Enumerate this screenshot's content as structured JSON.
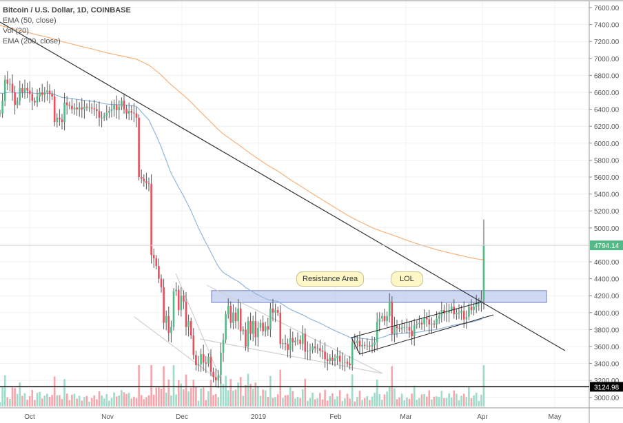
{
  "legend": {
    "title": "Bitcoin / U.S. Dollar, 1D, COINBASE",
    "ema50": "EMA (50, close)",
    "vol": "Vol (20)",
    "ema200": "EMA (200, close)"
  },
  "annotations": {
    "resistance": "Resistance Area",
    "lol": "LOL"
  },
  "colors": {
    "up": "#53b987",
    "down": "#eb4d5c",
    "ema50": "#8fb6dd",
    "ema200": "#f7b27a",
    "resistance_fill": "#b9c7ee",
    "last_price": "#53b987"
  },
  "chart_data": {
    "type": "candlestick",
    "title": "Bitcoin / U.S. Dollar, 1D, COINBASE",
    "start_date": "2018-09-19",
    "ylim": [
      2880,
      7680
    ],
    "yticks": [
      "7600.00",
      "7400.00",
      "7200.00",
      "7000.00",
      "6800.00",
      "6600.00",
      "6400.00",
      "6200.00",
      "6000.00",
      "5800.00",
      "5600.00",
      "5400.00",
      "5200.00",
      "5000.00",
      "4600.00",
      "4400.00",
      "4200.00",
      "4000.00",
      "3800.00",
      "3600.00",
      "3400.00",
      "3200.00",
      "3000.00"
    ],
    "xticks": [
      "Oct",
      "Nov",
      "Dec",
      "2019",
      "Feb",
      "Mar",
      "Apr",
      "May"
    ],
    "last_price": "4794.14",
    "support_level": "3124.98",
    "resistance_area": [
      4120,
      4260
    ],
    "closes": [
      6350,
      6500,
      6750,
      6700,
      6700,
      6600,
      6450,
      6500,
      6650,
      6600,
      6650,
      6620,
      6580,
      6500,
      6480,
      6550,
      6600,
      6570,
      6600,
      6620,
      6580,
      6550,
      6250,
      6300,
      6280,
      6250,
      6480,
      6450,
      6440,
      6400,
      6420,
      6400,
      6420,
      6400,
      6430,
      6420,
      6420,
      6410,
      6400,
      6380,
      6300,
      6300,
      6320,
      6360,
      6380,
      6400,
      6450,
      6390,
      6430,
      6500,
      6400,
      6350,
      6380,
      6360,
      6350,
      6300,
      5600,
      5580,
      5550,
      5530,
      5520,
      4680,
      4640,
      4550,
      4400,
      4300,
      3880,
      3960,
      3760,
      3830,
      4250,
      4270,
      4030,
      4200,
      4130,
      3830,
      3900,
      3730,
      3500,
      3380,
      3390,
      3510,
      3410,
      3400,
      3480,
      3300,
      3240,
      3200,
      3260,
      3530,
      3680,
      3980,
      4080,
      3880,
      4000,
      3900,
      4050,
      3780,
      3800,
      3600,
      3900,
      3750,
      3900,
      3710,
      3820,
      3880,
      3780,
      3840,
      3800,
      4050,
      4000,
      4030,
      4000,
      3630,
      3640,
      3630,
      3560,
      3700,
      3650,
      3670,
      3680,
      3630,
      3750,
      3540,
      3550,
      3560,
      3600,
      3580,
      3580,
      3550,
      3540,
      3450,
      3430,
      3470,
      3430,
      3460,
      3490,
      3420,
      3420,
      3420,
      3400,
      3380,
      3650,
      3640,
      3670,
      3600,
      3620,
      3610,
      3610,
      3600,
      3620,
      3650,
      3890,
      3930,
      3960,
      3900,
      3960,
      4130,
      3750,
      3840,
      3820,
      3810,
      3830,
      3830,
      3830,
      3790,
      3720,
      3850,
      3870,
      3880,
      3860,
      3940,
      3920,
      3860,
      3870,
      3860,
      3930,
      3960,
      4030,
      3990,
      4000,
      4030,
      4070,
      3980,
      4000,
      4000,
      4020,
      3920,
      3950,
      4070,
      4030,
      4070,
      4110,
      4110,
      4150,
      4794
    ]
  }
}
